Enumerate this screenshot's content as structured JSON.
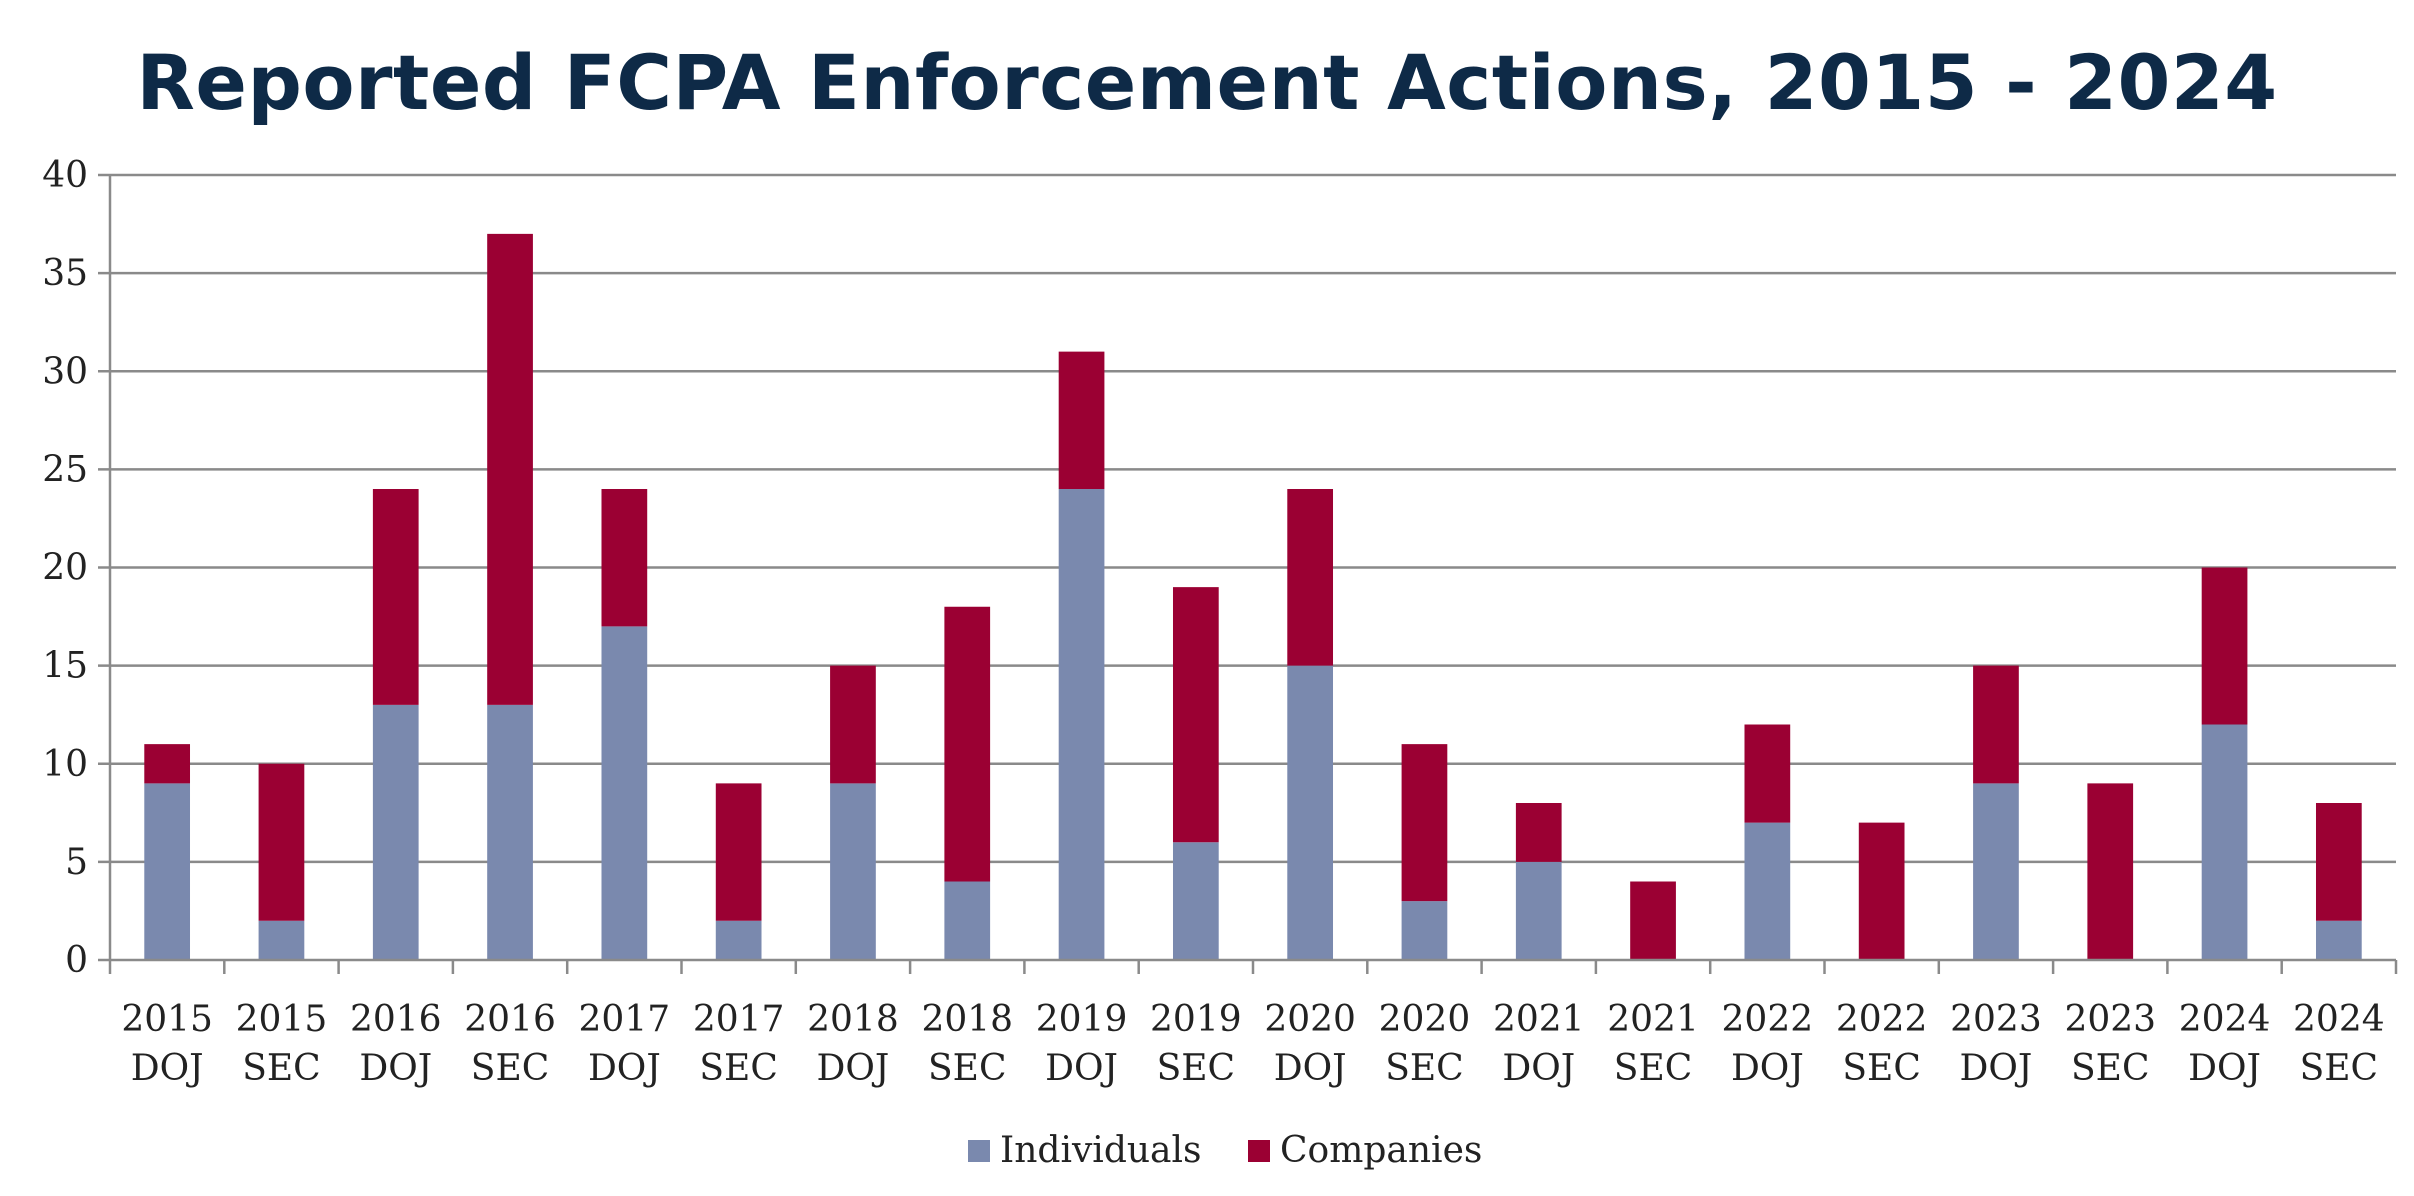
{
  "chart_data": {
    "type": "bar",
    "stacked": true,
    "title": "Reported FCPA Enforcement Actions, 2015 - 2024",
    "xlabel": "",
    "ylabel": "",
    "categories": [
      [
        "2015",
        "DOJ"
      ],
      [
        "2015",
        "SEC"
      ],
      [
        "2016",
        "DOJ"
      ],
      [
        "2016",
        "SEC"
      ],
      [
        "2017",
        "DOJ"
      ],
      [
        "2017",
        "SEC"
      ],
      [
        "2018",
        "DOJ"
      ],
      [
        "2018",
        "SEC"
      ],
      [
        "2019",
        "DOJ"
      ],
      [
        "2019",
        "SEC"
      ],
      [
        "2020",
        "DOJ"
      ],
      [
        "2020",
        "SEC"
      ],
      [
        "2021",
        "DOJ"
      ],
      [
        "2021",
        "SEC"
      ],
      [
        "2022",
        "DOJ"
      ],
      [
        "2022",
        "SEC"
      ],
      [
        "2023",
        "DOJ"
      ],
      [
        "2023",
        "SEC"
      ],
      [
        "2024",
        "DOJ"
      ],
      [
        "2024",
        "SEC"
      ]
    ],
    "series": [
      {
        "name": "Individuals",
        "color": "#7a89ae",
        "values": [
          9,
          2,
          13,
          13,
          17,
          2,
          9,
          4,
          24,
          6,
          15,
          3,
          5,
          0,
          7,
          0,
          9,
          0,
          12,
          2
        ]
      },
      {
        "name": "Companies",
        "color": "#9b0033",
        "values": [
          2,
          8,
          11,
          24,
          7,
          7,
          6,
          14,
          7,
          13,
          9,
          8,
          3,
          4,
          5,
          7,
          6,
          9,
          8,
          6
        ]
      }
    ],
    "ylim": [
      0,
      40
    ],
    "yticks": [
      0,
      5,
      10,
      15,
      20,
      25,
      30,
      35,
      40
    ],
    "grid": true,
    "legend_position": "bottom"
  }
}
